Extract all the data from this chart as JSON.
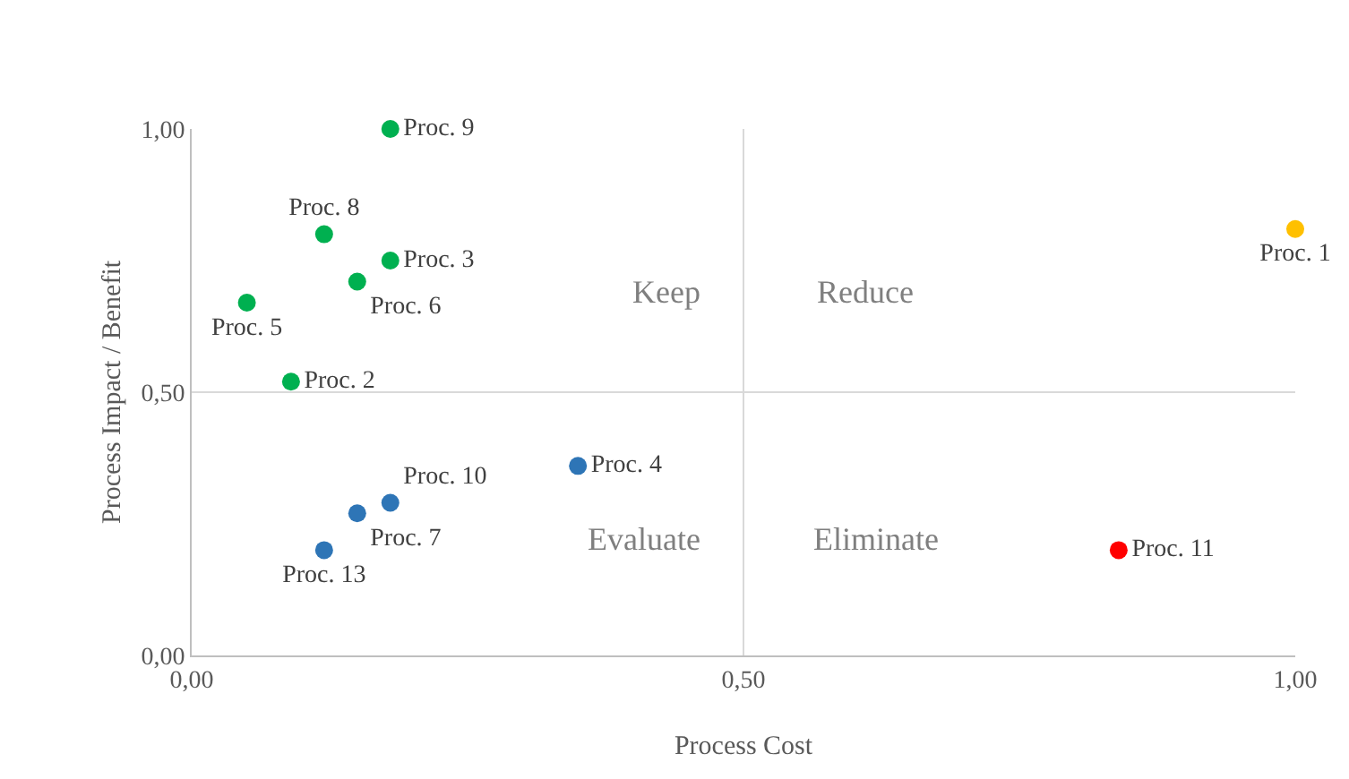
{
  "chart_data": {
    "type": "scatter",
    "xlabel": "Process Cost",
    "ylabel": "Process Impact / Benefit",
    "xlim": [
      0,
      1
    ],
    "ylim": [
      0,
      1
    ],
    "xticks": [
      {
        "value": 0,
        "label": "0,00"
      },
      {
        "value": 0.5,
        "label": "0,50"
      },
      {
        "value": 1,
        "label": "1,00"
      }
    ],
    "yticks": [
      {
        "value": 0,
        "label": "0,00"
      },
      {
        "value": 0.5,
        "label": "0,50"
      },
      {
        "value": 1,
        "label": "1,00"
      }
    ],
    "grid": true,
    "legend": false,
    "marker": "circle",
    "series": [
      {
        "name": "Proc. 9",
        "color": "#00b050",
        "x": [
          0.18
        ],
        "values": [
          1.0
        ]
      },
      {
        "name": "Proc. 8",
        "color": "#00b050",
        "x": [
          0.12
        ],
        "values": [
          0.8
        ]
      },
      {
        "name": "Proc. 3",
        "color": "#00b050",
        "x": [
          0.18
        ],
        "values": [
          0.75
        ]
      },
      {
        "name": "Proc. 6",
        "color": "#00b050",
        "x": [
          0.15
        ],
        "values": [
          0.71
        ]
      },
      {
        "name": "Proc. 5",
        "color": "#00b050",
        "x": [
          0.05
        ],
        "values": [
          0.67
        ]
      },
      {
        "name": "Proc. 2",
        "color": "#00b050",
        "x": [
          0.09
        ],
        "values": [
          0.52
        ]
      },
      {
        "name": "Proc. 4",
        "color": "#2e75b6",
        "x": [
          0.35
        ],
        "values": [
          0.36
        ]
      },
      {
        "name": "Proc. 10",
        "color": "#2e75b6",
        "x": [
          0.18
        ],
        "values": [
          0.29
        ]
      },
      {
        "name": "Proc. 7",
        "color": "#2e75b6",
        "x": [
          0.15
        ],
        "values": [
          0.27
        ]
      },
      {
        "name": "Proc. 13",
        "color": "#2e75b6",
        "x": [
          0.12
        ],
        "values": [
          0.2
        ]
      },
      {
        "name": "Proc. 1",
        "color": "#ffc000",
        "x": [
          1.0
        ],
        "values": [
          0.81
        ]
      },
      {
        "name": "Proc. 11",
        "color": "#ff0000",
        "x": [
          0.84
        ],
        "values": [
          0.2
        ]
      }
    ],
    "annotations": [
      "Keep",
      "Reduce",
      "Evaluate",
      "Eliminate"
    ]
  }
}
